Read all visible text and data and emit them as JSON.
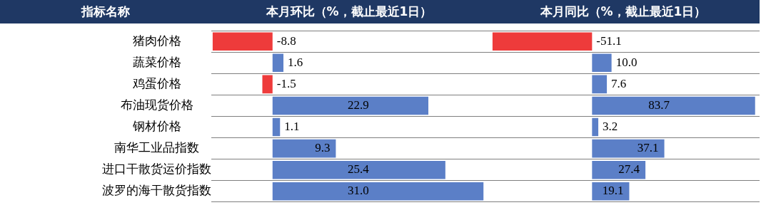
{
  "chart_data": [
    {
      "type": "bar",
      "orientation": "horizontal",
      "title": "本月环比（%，截止最近1日）",
      "ylabel": "指标名称",
      "categories": [
        "猪肉价格",
        "蔬菜价格",
        "鸡蛋价格",
        "布油现货价格",
        "钢材价格",
        "南华工业品指数",
        "进口干散货运价指数",
        "波罗的海干散货指数"
      ],
      "values": [
        -8.8,
        1.6,
        -1.5,
        22.9,
        1.1,
        9.3,
        25.4,
        31.0
      ],
      "value_labels": [
        "-8.8",
        "1.6",
        "-1.5",
        "22.9",
        "1.1",
        "9.3",
        "25.4",
        "31.0"
      ],
      "colors": [
        "#ee3b3b",
        "#5b7fc7",
        "#ee3b3b",
        "#5b7fc7",
        "#5b7fc7",
        "#5b7fc7",
        "#5b7fc7",
        "#5b7fc7"
      ],
      "xlim": [
        -9,
        31.5
      ],
      "grid": "y",
      "legend": false
    },
    {
      "type": "bar",
      "orientation": "horizontal",
      "title": "本月同比（%，截止最近1日）",
      "categories": [
        null,
        null,
        null,
        null,
        null,
        null,
        null,
        null
      ],
      "values": [
        -51.1,
        10.0,
        7.6,
        83.7,
        3.2,
        37.1,
        27.4,
        19.1
      ],
      "value_labels": [
        "-51.1",
        "10.0",
        "7.6",
        "83.7",
        "3.2",
        "37.1",
        "27.4",
        "19.1"
      ],
      "colors": [
        "#ee3b3b",
        "#5b7fc7",
        "#5b7fc7",
        "#5b7fc7",
        "#5b7fc7",
        "#5b7fc7",
        "#5b7fc7",
        "#5b7fc7"
      ],
      "xlim": [
        -54,
        86
      ],
      "grid": "y",
      "legend": false
    }
  ]
}
